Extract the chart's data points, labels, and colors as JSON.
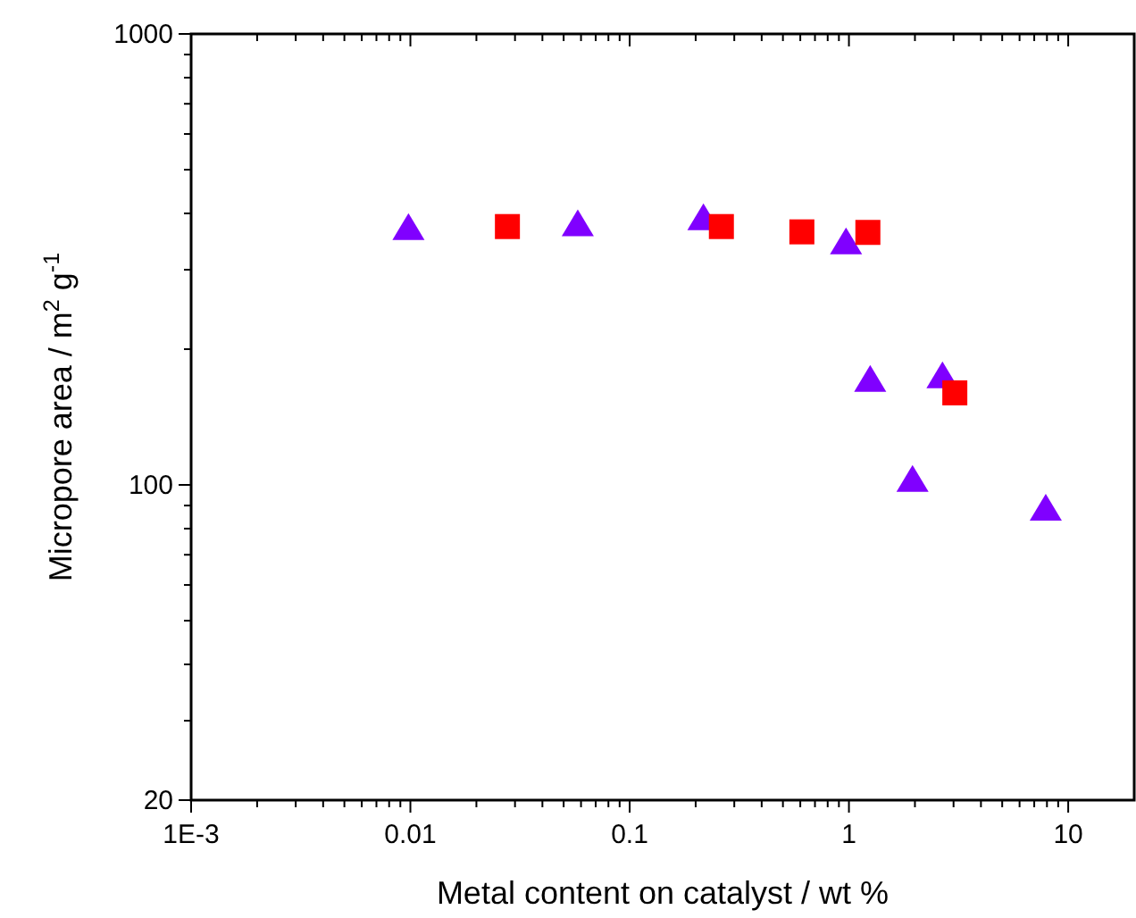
{
  "chart_data": {
    "type": "scatter",
    "xlabel": "Metal content on catalyst / wt %",
    "ylabel": "Micropore area / m$^{2}$ g$^{-1}$",
    "log": "xy",
    "xlim": [
      0.001,
      20
    ],
    "ylim": [
      20,
      1000
    ],
    "xticks": [
      {
        "value": 0.001,
        "label": "1E-3"
      },
      0.01,
      0.1,
      1,
      10
    ],
    "yticks": [
      20,
      100,
      1000
    ],
    "series": [
      {
        "color": "#8000ff",
        "marker": "triangle",
        "x": [
          0.0098,
          0.058,
          0.217,
          0.97,
          1.25,
          1.95,
          2.67,
          7.9
        ],
        "values": [
          369,
          376,
          388,
          343,
          170,
          102,
          173,
          88
        ]
      },
      {
        "color": "#ff0000",
        "marker": "square",
        "x": [
          0.0277,
          0.262,
          0.61,
          1.22,
          3.04
        ],
        "values": [
          374,
          374,
          364,
          363,
          160
        ]
      }
    ]
  }
}
